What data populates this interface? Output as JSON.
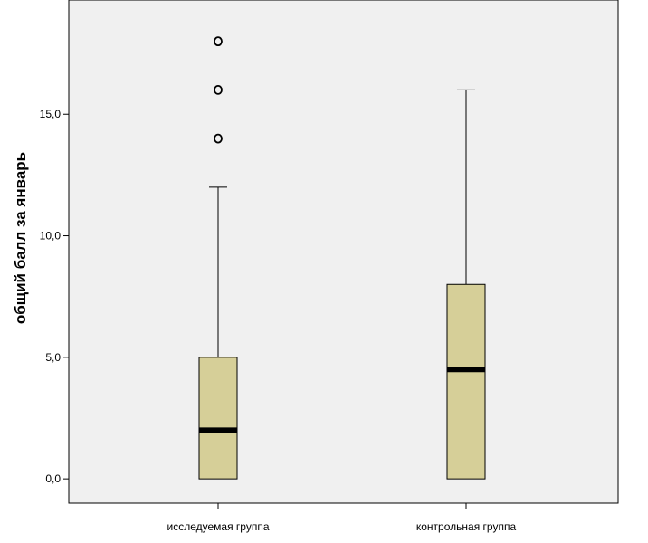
{
  "chart_data": {
    "type": "boxplot",
    "ylabel": "общий балл за январь",
    "xlabel": "",
    "ylim": [
      -1.0,
      19.7
    ],
    "yticks": [
      {
        "value": 0,
        "label": "0,0"
      },
      {
        "value": 5,
        "label": "5,0"
      },
      {
        "value": 10,
        "label": "10,0"
      },
      {
        "value": 15,
        "label": "15,0"
      }
    ],
    "grid": false,
    "box_color": "#d6cf98",
    "categories": [
      "исследуемая группа",
      "контрольная группа"
    ],
    "boxes": [
      {
        "category": "исследуемая группа",
        "min": 0,
        "q1": 0,
        "median": 2,
        "q3": 5,
        "max": 12,
        "outliers": [
          14,
          16,
          18
        ]
      },
      {
        "category": "контрольная группа",
        "min": 0,
        "q1": 0,
        "median": 4.5,
        "q3": 8,
        "max": 16,
        "outliers": []
      }
    ]
  }
}
